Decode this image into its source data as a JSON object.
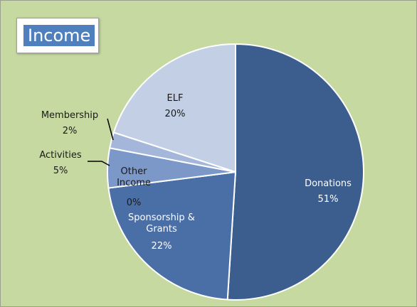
{
  "chart_data": {
    "type": "pie",
    "title": "Income",
    "categories": [
      "Donations",
      "Sponsorship & Grants",
      "Other Income",
      "Activities",
      "Membership",
      "ELF"
    ],
    "values": [
      51,
      22,
      0,
      5,
      2,
      20
    ],
    "value_labels": [
      "51%",
      "22%",
      "0%",
      "5%",
      "2%",
      "20%"
    ],
    "colors": [
      "#3c5e8e",
      "#4a6fa6",
      "#6a88bb",
      "#7b98c8",
      "#a4b7da",
      "#c3cfe4"
    ]
  }
}
